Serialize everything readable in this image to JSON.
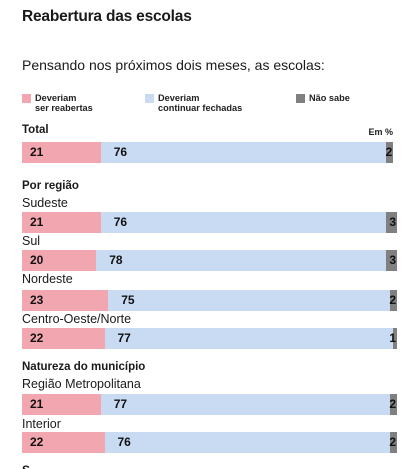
{
  "title": "Reabertura das escolas",
  "subtitle": "Pensando nos próximos dois meses, as escolas:",
  "unit_label": "Em %",
  "legend": [
    {
      "label": "Deveriam\nser reabertas",
      "color": "#f2a7b0"
    },
    {
      "label": "Deveriam\ncontinuar fechadas",
      "color": "#c9dbf2"
    },
    {
      "label": "Não sabe",
      "color": "#808080"
    }
  ],
  "chart_data": {
    "type": "bar",
    "stacked": true,
    "orientation": "horizontal",
    "categories": [
      "Total",
      "Sudeste",
      "Sul",
      "Nordeste",
      "Centro-Oeste/Norte",
      "Região Metropolitana",
      "Interior"
    ],
    "groups": [
      {
        "heading": "Total",
        "rows": [
          0
        ]
      },
      {
        "heading": "Por região",
        "rows": [
          1,
          2,
          3,
          4
        ]
      },
      {
        "heading": "Natureza do município",
        "rows": [
          5,
          6
        ]
      }
    ],
    "series": [
      {
        "name": "Deveriam ser reabertas",
        "values": [
          21,
          21,
          20,
          23,
          22,
          21,
          22
        ]
      },
      {
        "name": "Deveriam continuar fechadas",
        "values": [
          76,
          76,
          78,
          75,
          77,
          77,
          76
        ]
      },
      {
        "name": "Não sabe",
        "values": [
          2,
          3,
          3,
          2,
          1,
          2,
          2
        ]
      }
    ],
    "xlim": [
      0,
      100
    ]
  }
}
